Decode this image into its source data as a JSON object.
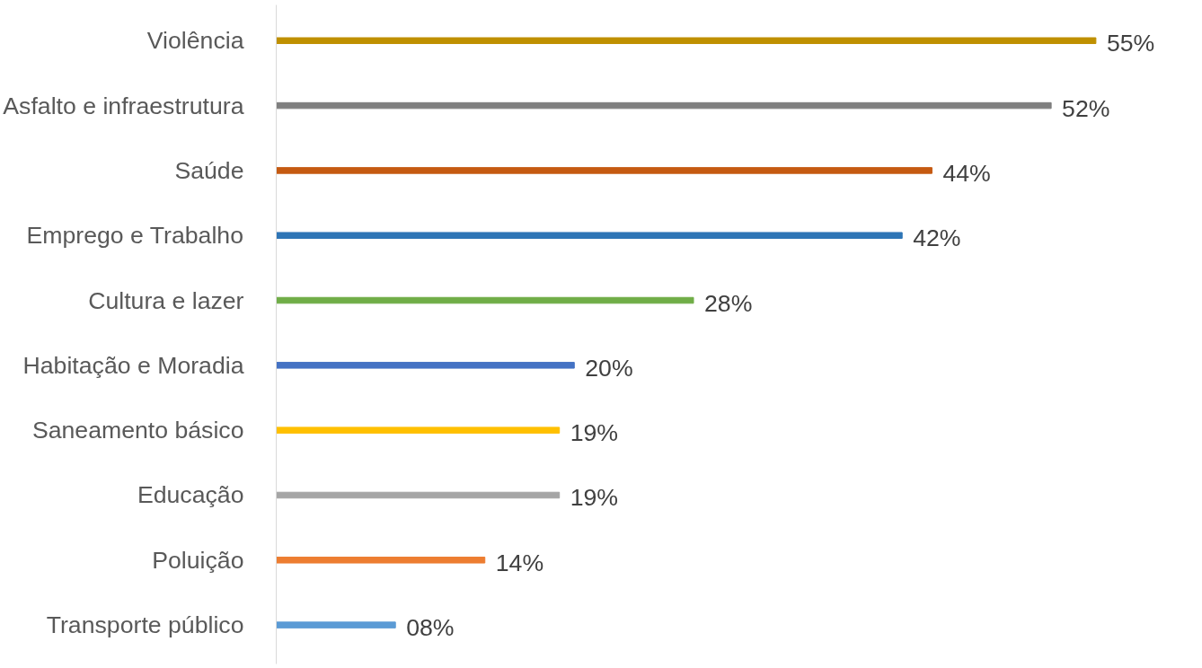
{
  "chart_data": {
    "type": "bar",
    "orientation": "horizontal",
    "categories": [
      "Violência",
      "Asfalto e infraestrutura",
      "Saúde",
      "Emprego e Trabalho",
      "Cultura e lazer",
      "Habitação e Moradia",
      "Saneamento básico",
      "Educação",
      "Poluição",
      "Transporte público"
    ],
    "values": [
      55,
      52,
      44,
      42,
      28,
      20,
      19,
      19,
      14,
      8
    ],
    "value_labels": [
      "55%",
      "52%",
      "44%",
      "42%",
      "28%",
      "20%",
      "19%",
      "19%",
      "14%",
      "08%"
    ],
    "colors": [
      "#bf9000",
      "#7f7f7f",
      "#c55a11",
      "#2e75b6",
      "#70ad47",
      "#4472c4",
      "#ffc000",
      "#a5a5a5",
      "#ed7d31",
      "#5b9bd5"
    ],
    "tick_labels": "y",
    "grid": false
  }
}
